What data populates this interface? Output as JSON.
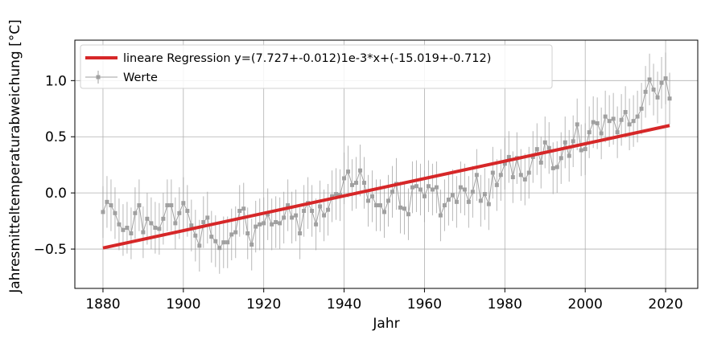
{
  "chart_data": {
    "type": "line",
    "title": "",
    "xlabel": "Jahr",
    "ylabel": "Jahresmitteltemperaturabweichung [°C]",
    "xlim": [
      1873,
      2028
    ],
    "ylim": [
      -0.85,
      1.36
    ],
    "xticks": [
      1880,
      1900,
      1920,
      1940,
      1960,
      1980,
      2000,
      2020
    ],
    "yticks": [
      -0.5,
      0.0,
      0.5,
      1.0
    ],
    "ytick_labels": [
      "−0.5",
      "0.0",
      "0.5",
      "1.0"
    ],
    "grid": true,
    "legend_position": "top-left",
    "series": [
      {
        "name": "Werte",
        "kind": "errorbar-line",
        "color": "#a0a0a0",
        "x": [
          1880,
          1881,
          1882,
          1883,
          1884,
          1885,
          1886,
          1887,
          1888,
          1889,
          1890,
          1891,
          1892,
          1893,
          1894,
          1895,
          1896,
          1897,
          1898,
          1899,
          1900,
          1901,
          1902,
          1903,
          1904,
          1905,
          1906,
          1907,
          1908,
          1909,
          1910,
          1911,
          1912,
          1913,
          1914,
          1915,
          1916,
          1917,
          1918,
          1919,
          1920,
          1921,
          1922,
          1923,
          1924,
          1925,
          1926,
          1927,
          1928,
          1929,
          1930,
          1931,
          1932,
          1933,
          1934,
          1935,
          1936,
          1937,
          1938,
          1939,
          1940,
          1941,
          1942,
          1943,
          1944,
          1945,
          1946,
          1947,
          1948,
          1949,
          1950,
          1951,
          1952,
          1953,
          1954,
          1955,
          1956,
          1957,
          1958,
          1959,
          1960,
          1961,
          1962,
          1963,
          1964,
          1965,
          1966,
          1967,
          1968,
          1969,
          1970,
          1971,
          1972,
          1973,
          1974,
          1975,
          1976,
          1977,
          1978,
          1979,
          1980,
          1981,
          1982,
          1983,
          1984,
          1985,
          1986,
          1987,
          1988,
          1989,
          1990,
          1991,
          1992,
          1993,
          1994,
          1995,
          1996,
          1997,
          1998,
          1999,
          2000,
          2001,
          2002,
          2003,
          2004,
          2005,
          2006,
          2007,
          2008,
          2009,
          2010,
          2011,
          2012,
          2013,
          2014,
          2015,
          2016,
          2017,
          2018,
          2019,
          2020,
          2021
        ],
        "y": [
          -0.17,
          -0.08,
          -0.11,
          -0.18,
          -0.28,
          -0.33,
          -0.31,
          -0.36,
          -0.18,
          -0.11,
          -0.35,
          -0.23,
          -0.27,
          -0.31,
          -0.32,
          -0.23,
          -0.11,
          -0.11,
          -0.27,
          -0.18,
          -0.09,
          -0.16,
          -0.29,
          -0.38,
          -0.47,
          -0.26,
          -0.22,
          -0.39,
          -0.43,
          -0.49,
          -0.44,
          -0.44,
          -0.37,
          -0.35,
          -0.16,
          -0.14,
          -0.36,
          -0.46,
          -0.3,
          -0.28,
          -0.27,
          -0.19,
          -0.28,
          -0.26,
          -0.27,
          -0.22,
          -0.11,
          -0.22,
          -0.2,
          -0.36,
          -0.16,
          -0.09,
          -0.16,
          -0.28,
          -0.12,
          -0.2,
          -0.15,
          -0.03,
          -0.01,
          -0.02,
          0.13,
          0.19,
          0.07,
          0.09,
          0.2,
          0.09,
          -0.07,
          -0.03,
          -0.11,
          -0.11,
          -0.17,
          -0.07,
          0.01,
          0.08,
          -0.13,
          -0.14,
          -0.19,
          0.05,
          0.06,
          0.03,
          -0.03,
          0.06,
          0.03,
          0.05,
          -0.2,
          -0.11,
          -0.06,
          -0.02,
          -0.08,
          0.05,
          0.03,
          -0.08,
          0.01,
          0.16,
          -0.07,
          -0.01,
          -0.1,
          0.18,
          0.07,
          0.16,
          0.26,
          0.32,
          0.14,
          0.31,
          0.16,
          0.12,
          0.18,
          0.32,
          0.39,
          0.27,
          0.45,
          0.4,
          0.22,
          0.23,
          0.31,
          0.45,
          0.33,
          0.46,
          0.61,
          0.38,
          0.39,
          0.54,
          0.63,
          0.62,
          0.53,
          0.68,
          0.64,
          0.66,
          0.54,
          0.65,
          0.72,
          0.61,
          0.64,
          0.68,
          0.75,
          0.9,
          1.01,
          0.92,
          0.85,
          0.98,
          1.02,
          0.84
        ],
        "yerr": 0.23
      },
      {
        "name": "lineare Regression y=(7.727+-0.012)1e-3*x+(-15.019+-0.712)",
        "kind": "line",
        "color": "#d62728",
        "x": [
          1880,
          2021
        ],
        "y": [
          -0.49,
          0.6
        ]
      }
    ]
  },
  "colors": {
    "data": "#a0a0a0",
    "regression": "#d62728",
    "grid": "#b0b0b0",
    "axes": "#000000"
  }
}
